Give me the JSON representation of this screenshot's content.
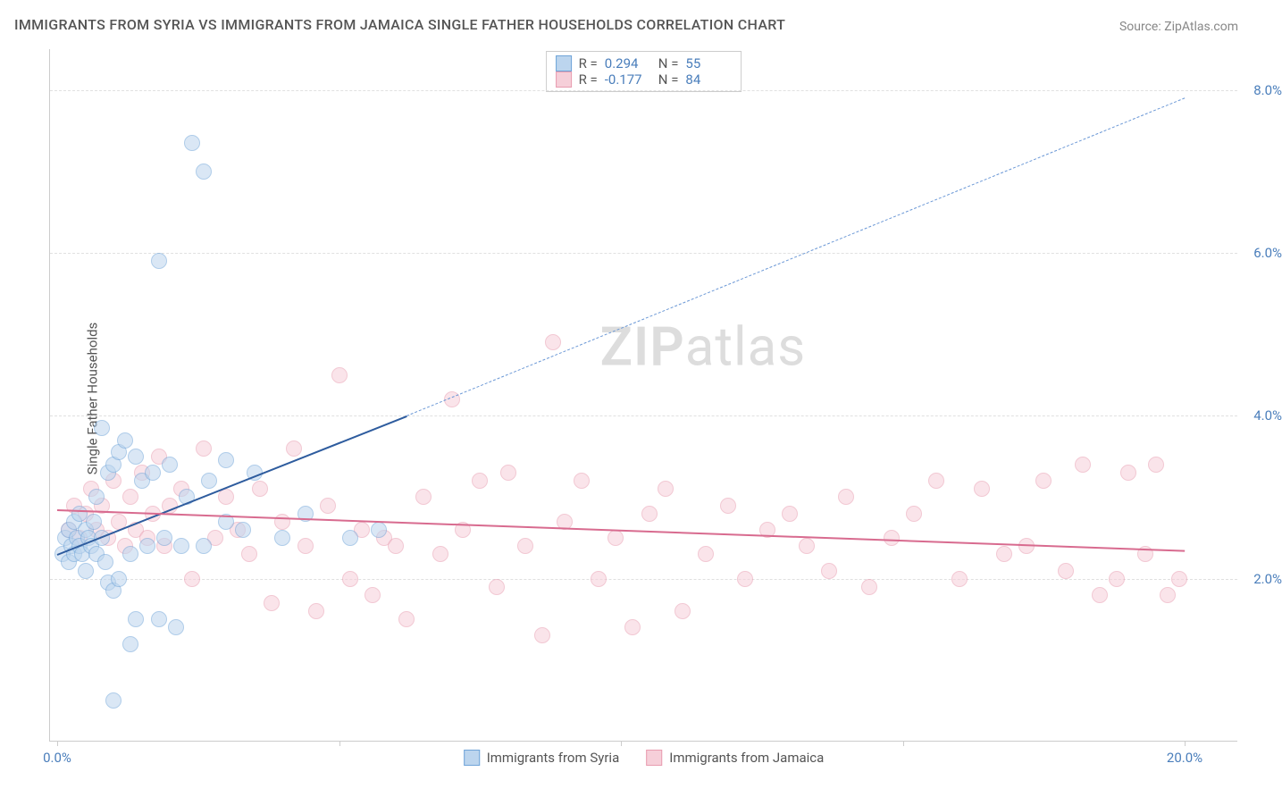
{
  "title": "IMMIGRANTS FROM SYRIA VS IMMIGRANTS FROM JAMAICA SINGLE FATHER HOUSEHOLDS CORRELATION CHART",
  "source": "Source: ZipAtlas.com",
  "watermark_a": "ZIP",
  "watermark_b": "atlas",
  "y_axis_title": "Single Father Households",
  "chart": {
    "type": "scatter",
    "background_color": "#ffffff",
    "grid_color": "#e0e0e0",
    "axis_color": "#cccccc",
    "tick_label_color": "#4a7ebb",
    "title_color": "#555555",
    "title_fontsize": 16,
    "label_fontsize": 15,
    "xlim": [
      0,
      20
    ],
    "ylim": [
      0,
      8.5
    ],
    "y_ticks": [
      2.0,
      4.0,
      6.0,
      8.0
    ],
    "y_tick_labels": [
      "2.0%",
      "4.0%",
      "6.0%",
      "8.0%"
    ],
    "x_ticks": [
      0,
      5,
      10,
      15,
      20
    ],
    "x_tick_labels": [
      "0.0%",
      "",
      "",
      "",
      "20.0%"
    ],
    "point_radius": 9,
    "point_opacity": 0.55,
    "series": [
      {
        "name": "Immigrants from Syria",
        "stroke": "#6fa4d8",
        "fill": "#bcd5ee",
        "R": "0.294",
        "N": "55",
        "trend": {
          "x1": 0,
          "y1": 2.3,
          "x2": 6.2,
          "y2": 4.0,
          "color": "#2e5c9e",
          "width": 2,
          "dash": "none"
        },
        "trend_ext": {
          "x1": 6.2,
          "y1": 4.0,
          "x2": 20,
          "y2": 7.9,
          "color": "#6b98d6",
          "width": 1.5,
          "dash": "7,6"
        },
        "points": [
          [
            0.1,
            2.3
          ],
          [
            0.15,
            2.5
          ],
          [
            0.2,
            2.2
          ],
          [
            0.2,
            2.6
          ],
          [
            0.25,
            2.4
          ],
          [
            0.3,
            2.3
          ],
          [
            0.3,
            2.7
          ],
          [
            0.35,
            2.5
          ],
          [
            0.4,
            2.4
          ],
          [
            0.4,
            2.8
          ],
          [
            0.45,
            2.3
          ],
          [
            0.5,
            2.6
          ],
          [
            0.5,
            2.1
          ],
          [
            0.55,
            2.5
          ],
          [
            0.6,
            2.4
          ],
          [
            0.65,
            2.7
          ],
          [
            0.7,
            2.3
          ],
          [
            0.7,
            3.0
          ],
          [
            0.8,
            2.5
          ],
          [
            0.85,
            2.2
          ],
          [
            0.9,
            3.3
          ],
          [
            0.9,
            1.95
          ],
          [
            1.0,
            3.4
          ],
          [
            1.0,
            1.85
          ],
          [
            1.1,
            3.55
          ],
          [
            1.1,
            2.0
          ],
          [
            1.2,
            3.7
          ],
          [
            1.3,
            2.3
          ],
          [
            1.4,
            3.5
          ],
          [
            1.4,
            1.5
          ],
          [
            1.5,
            3.2
          ],
          [
            1.6,
            2.4
          ],
          [
            1.7,
            3.3
          ],
          [
            1.8,
            1.5
          ],
          [
            1.9,
            2.5
          ],
          [
            2.0,
            3.4
          ],
          [
            2.1,
            1.4
          ],
          [
            2.2,
            2.4
          ],
          [
            2.3,
            3.0
          ],
          [
            2.6,
            2.4
          ],
          [
            2.7,
            3.2
          ],
          [
            3.0,
            2.7
          ],
          [
            3.0,
            3.45
          ],
          [
            3.3,
            2.6
          ],
          [
            3.5,
            3.3
          ],
          [
            4.0,
            2.5
          ],
          [
            4.4,
            2.8
          ],
          [
            5.2,
            2.5
          ],
          [
            5.7,
            2.6
          ],
          [
            1.0,
            0.5
          ],
          [
            1.3,
            1.2
          ],
          [
            1.8,
            5.9
          ],
          [
            2.4,
            7.35
          ],
          [
            2.6,
            7.0
          ],
          [
            0.8,
            3.85
          ]
        ]
      },
      {
        "name": "Immigrants from Jamaica",
        "stroke": "#e89cb0",
        "fill": "#f6cfd9",
        "R": "-0.177",
        "N": "84",
        "trend": {
          "x1": 0,
          "y1": 2.85,
          "x2": 20,
          "y2": 2.35,
          "color": "#d86b8f",
          "width": 2.5,
          "dash": "none"
        },
        "points": [
          [
            0.2,
            2.6
          ],
          [
            0.3,
            2.9
          ],
          [
            0.4,
            2.5
          ],
          [
            0.5,
            2.8
          ],
          [
            0.6,
            3.1
          ],
          [
            0.7,
            2.6
          ],
          [
            0.8,
            2.9
          ],
          [
            0.9,
            2.5
          ],
          [
            1.0,
            3.2
          ],
          [
            1.1,
            2.7
          ],
          [
            1.2,
            2.4
          ],
          [
            1.3,
            3.0
          ],
          [
            1.4,
            2.6
          ],
          [
            1.5,
            3.3
          ],
          [
            1.6,
            2.5
          ],
          [
            1.7,
            2.8
          ],
          [
            1.8,
            3.5
          ],
          [
            1.9,
            2.4
          ],
          [
            2.0,
            2.9
          ],
          [
            2.2,
            3.1
          ],
          [
            2.4,
            2.0
          ],
          [
            2.6,
            3.6
          ],
          [
            2.8,
            2.5
          ],
          [
            3.0,
            3.0
          ],
          [
            3.2,
            2.6
          ],
          [
            3.4,
            2.3
          ],
          [
            3.6,
            3.1
          ],
          [
            3.8,
            1.7
          ],
          [
            4.0,
            2.7
          ],
          [
            4.2,
            3.6
          ],
          [
            4.4,
            2.4
          ],
          [
            4.6,
            1.6
          ],
          [
            4.8,
            2.9
          ],
          [
            5.0,
            4.5
          ],
          [
            5.2,
            2.0
          ],
          [
            5.4,
            2.6
          ],
          [
            5.6,
            1.8
          ],
          [
            5.8,
            2.5
          ],
          [
            6.0,
            2.4
          ],
          [
            6.2,
            1.5
          ],
          [
            6.5,
            3.0
          ],
          [
            6.8,
            2.3
          ],
          [
            7.0,
            4.2
          ],
          [
            7.2,
            2.6
          ],
          [
            7.5,
            3.2
          ],
          [
            7.8,
            1.9
          ],
          [
            8.0,
            3.3
          ],
          [
            8.3,
            2.4
          ],
          [
            8.6,
            1.3
          ],
          [
            8.8,
            4.9
          ],
          [
            9.0,
            2.7
          ],
          [
            9.3,
            3.2
          ],
          [
            9.6,
            2.0
          ],
          [
            9.9,
            2.5
          ],
          [
            10.2,
            1.4
          ],
          [
            10.5,
            2.8
          ],
          [
            10.8,
            3.1
          ],
          [
            11.1,
            1.6
          ],
          [
            11.5,
            2.3
          ],
          [
            11.9,
            2.9
          ],
          [
            12.2,
            2.0
          ],
          [
            12.6,
            2.6
          ],
          [
            13.0,
            2.8
          ],
          [
            13.3,
            2.4
          ],
          [
            13.7,
            2.1
          ],
          [
            14.0,
            3.0
          ],
          [
            14.4,
            1.9
          ],
          [
            14.8,
            2.5
          ],
          [
            15.2,
            2.8
          ],
          [
            15.6,
            3.2
          ],
          [
            16.0,
            2.0
          ],
          [
            16.4,
            3.1
          ],
          [
            16.8,
            2.3
          ],
          [
            17.2,
            2.4
          ],
          [
            17.5,
            3.2
          ],
          [
            17.9,
            2.1
          ],
          [
            18.2,
            3.4
          ],
          [
            18.5,
            1.8
          ],
          [
            18.8,
            2.0
          ],
          [
            19.0,
            3.3
          ],
          [
            19.3,
            2.3
          ],
          [
            19.5,
            3.4
          ],
          [
            19.7,
            1.8
          ],
          [
            19.9,
            2.0
          ]
        ]
      }
    ]
  },
  "stats_box": {
    "r_label": "R  = ",
    "n_label": "N  = "
  },
  "legend": {
    "items": [
      "Immigrants from Syria",
      "Immigrants from Jamaica"
    ]
  }
}
